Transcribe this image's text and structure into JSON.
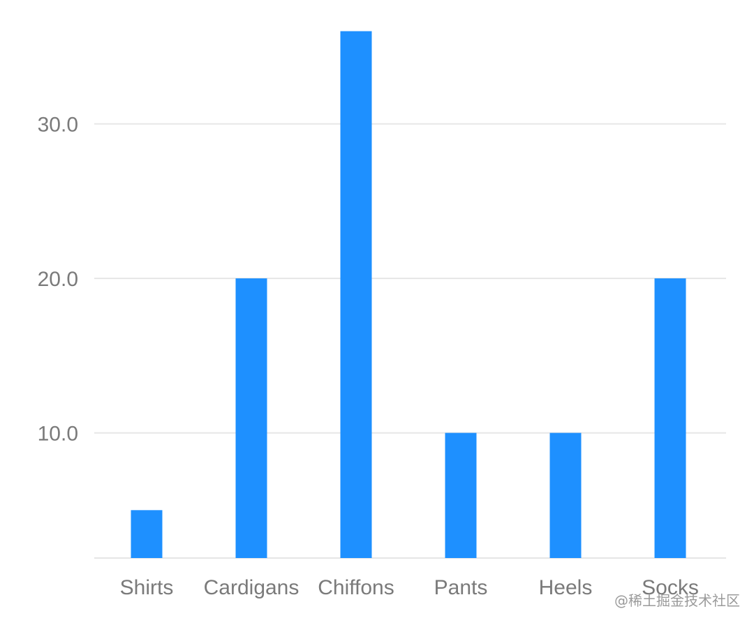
{
  "chart_data": {
    "type": "bar",
    "categories": [
      "Shirts",
      "Cardigans",
      "Chiffons",
      "Pants",
      "Heels",
      "Socks"
    ],
    "values": [
      5,
      20,
      36,
      10,
      10,
      20
    ],
    "y_ticks": [
      "10.0",
      "20.0",
      "30.0"
    ],
    "y_tick_values": [
      10,
      20,
      30
    ],
    "ylim": [
      1.9,
      36
    ],
    "grid": true,
    "bar_color": "#1E90FF",
    "grid_color": "#e6e6e6",
    "title": "",
    "xlabel": "",
    "ylabel": ""
  },
  "watermark": "@稀土掘金技术社区"
}
